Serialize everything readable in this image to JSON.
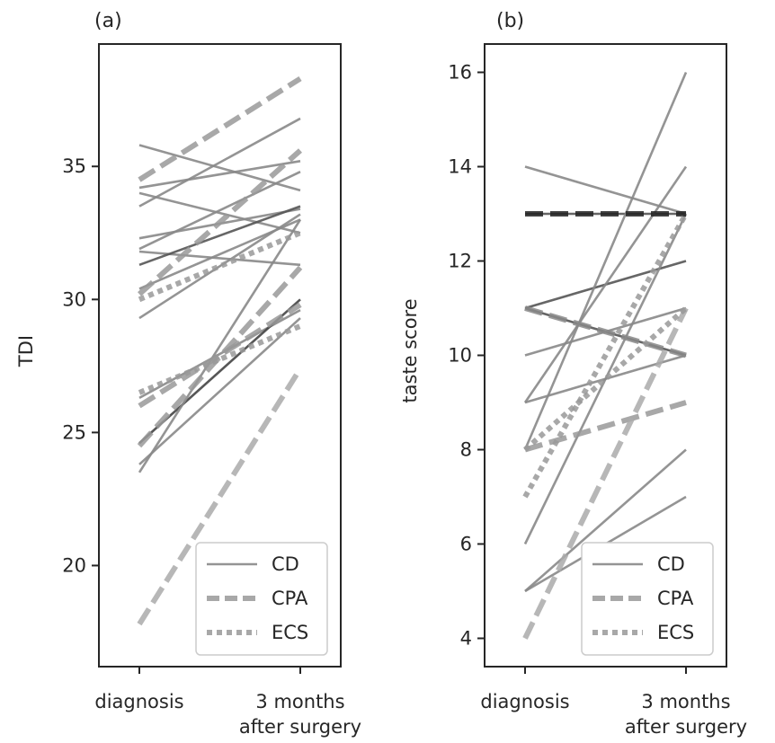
{
  "chart_data": [
    {
      "type": "line",
      "title": "(a)",
      "xlabel": "",
      "ylabel": "TDI",
      "categories": [
        "diagnosis",
        "3 months\nafter surgery"
      ],
      "ylim": [
        16.2,
        39.6
      ],
      "yticks": [
        20,
        25,
        30,
        35
      ],
      "grid": false,
      "legend": {
        "position": "lower right",
        "entries": [
          {
            "label": "CD",
            "style": "solid"
          },
          {
            "label": "CPA",
            "style": "dashed"
          },
          {
            "label": "ECS",
            "style": "dotted"
          }
        ]
      },
      "series": [
        {
          "group": "CD",
          "values": [
            35.8,
            34.1
          ],
          "shade": "#888888"
        },
        {
          "group": "CD",
          "values": [
            34.2,
            35.2
          ],
          "shade": "#888888"
        },
        {
          "group": "CD",
          "values": [
            34.0,
            32.5
          ],
          "shade": "#888888"
        },
        {
          "group": "CD",
          "values": [
            33.5,
            36.8
          ],
          "shade": "#888888"
        },
        {
          "group": "CD",
          "values": [
            32.3,
            33.4
          ],
          "shade": "#888888"
        },
        {
          "group": "CD",
          "values": [
            31.9,
            34.8
          ],
          "shade": "#888888"
        },
        {
          "group": "CD",
          "values": [
            31.8,
            31.3
          ],
          "shade": "#888888"
        },
        {
          "group": "CD",
          "values": [
            31.3,
            33.5
          ],
          "shade": "#555555"
        },
        {
          "group": "CD",
          "values": [
            30.4,
            33.0
          ],
          "shade": "#888888"
        },
        {
          "group": "CD",
          "values": [
            29.3,
            33.2
          ],
          "shade": "#888888"
        },
        {
          "group": "CD",
          "values": [
            26.3,
            29.6
          ],
          "shade": "#888888"
        },
        {
          "group": "CD",
          "values": [
            24.6,
            30.0
          ],
          "shade": "#444444"
        },
        {
          "group": "CD",
          "values": [
            23.8,
            29.3
          ],
          "shade": "#888888"
        },
        {
          "group": "CD",
          "values": [
            23.5,
            33.0
          ],
          "shade": "#888888"
        },
        {
          "group": "CPA",
          "values": [
            34.5,
            38.3
          ],
          "shade": "#999999"
        },
        {
          "group": "CPA",
          "values": [
            30.2,
            35.6
          ],
          "shade": "#999999"
        },
        {
          "group": "CPA",
          "values": [
            26.0,
            29.8
          ],
          "shade": "#999999"
        },
        {
          "group": "CPA",
          "values": [
            24.5,
            31.2
          ],
          "shade": "#999999"
        },
        {
          "group": "CPA",
          "values": [
            17.8,
            27.4
          ],
          "shade": "#aaaaaa"
        },
        {
          "group": "ECS",
          "values": [
            30.0,
            32.5
          ],
          "shade": "#999999"
        },
        {
          "group": "ECS",
          "values": [
            26.5,
            29.0
          ],
          "shade": "#999999"
        }
      ]
    },
    {
      "type": "line",
      "title": "(b)",
      "xlabel": "",
      "ylabel": "taste score",
      "categories": [
        "diagnosis",
        "3 months\nafter surgery"
      ],
      "ylim": [
        3.4,
        16.6
      ],
      "yticks": [
        4,
        6,
        8,
        10,
        12,
        14,
        16
      ],
      "grid": false,
      "legend": {
        "position": "lower right",
        "entries": [
          {
            "label": "CD",
            "style": "solid"
          },
          {
            "label": "CPA",
            "style": "dashed"
          },
          {
            "label": "ECS",
            "style": "dotted"
          }
        ]
      },
      "series": [
        {
          "group": "CD",
          "values": [
            14,
            13
          ],
          "shade": "#888888"
        },
        {
          "group": "CD",
          "values": [
            13,
            13
          ],
          "shade": "#555555"
        },
        {
          "group": "CD",
          "values": [
            11,
            12
          ],
          "shade": "#555555"
        },
        {
          "group": "CD",
          "values": [
            11,
            10
          ],
          "shade": "#555555"
        },
        {
          "group": "CD",
          "values": [
            10,
            11
          ],
          "shade": "#888888"
        },
        {
          "group": "CD",
          "values": [
            9,
            14
          ],
          "shade": "#888888"
        },
        {
          "group": "CD",
          "values": [
            9,
            10
          ],
          "shade": "#888888"
        },
        {
          "group": "CD",
          "values": [
            8,
            16
          ],
          "shade": "#888888"
        },
        {
          "group": "CD",
          "values": [
            6,
            13
          ],
          "shade": "#888888"
        },
        {
          "group": "CD",
          "values": [
            5,
            8
          ],
          "shade": "#888888"
        },
        {
          "group": "CD",
          "values": [
            5,
            7
          ],
          "shade": "#888888"
        },
        {
          "group": "CPA",
          "values": [
            13,
            13
          ],
          "shade": "#222222"
        },
        {
          "group": "CPA",
          "values": [
            11,
            10
          ],
          "shade": "#888888"
        },
        {
          "group": "CPA",
          "values": [
            8,
            9
          ],
          "shade": "#999999"
        },
        {
          "group": "CPA",
          "values": [
            4,
            11
          ],
          "shade": "#aaaaaa"
        },
        {
          "group": "ECS",
          "values": [
            8,
            11
          ],
          "shade": "#999999"
        },
        {
          "group": "ECS",
          "values": [
            7,
            13
          ],
          "shade": "#999999"
        }
      ]
    }
  ]
}
